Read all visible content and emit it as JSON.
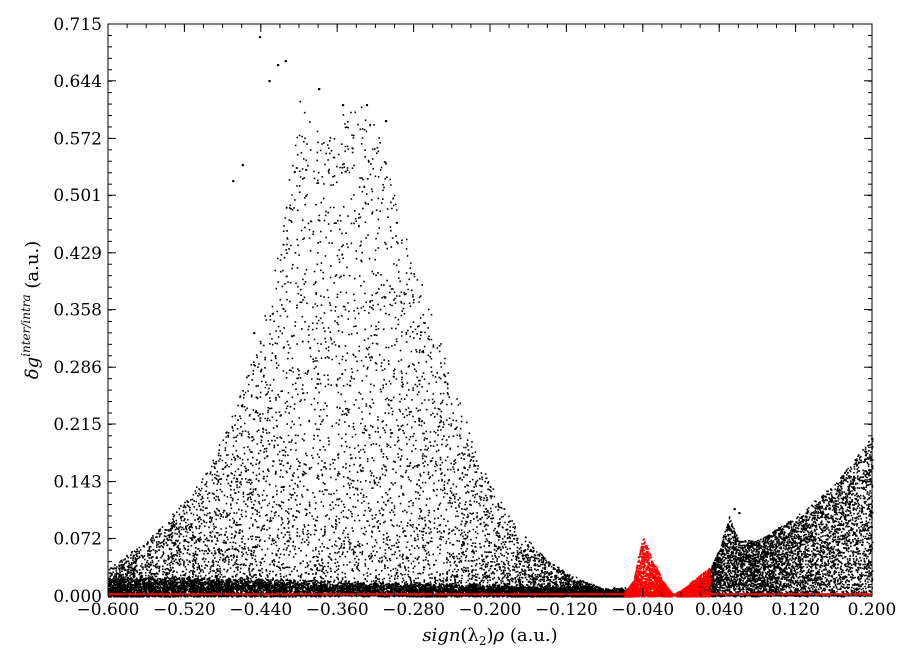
{
  "chart_data": {
    "type": "scatter",
    "title": "",
    "xlabel": "sign(λ₂)ρ (a.u.)",
    "xlabel_parts": {
      "func": "sign",
      "open": "(λ",
      "sub": "2",
      "close": ")",
      "rho": "ρ",
      "units": " (a.u.)"
    },
    "ylabel": "δg^inter/intra (a.u.)",
    "ylabel_parts": {
      "delta": "δg",
      "sup": "inter/intra",
      "units": " (a.u.)"
    },
    "xlim": [
      -0.6,
      0.2
    ],
    "ylim": [
      0,
      0.715
    ],
    "x_ticks": [
      -0.6,
      -0.52,
      -0.44,
      -0.36,
      -0.28,
      -0.2,
      -0.12,
      -0.04,
      0.04,
      0.12,
      0.2
    ],
    "x_tick_labels": [
      "−0.600",
      "−0.520",
      "−0.440",
      "−0.360",
      "−0.280",
      "−0.200",
      "−0.120",
      "−0.040",
      "0.040",
      "0.120",
      "0.200"
    ],
    "y_ticks": [
      0,
      0.072,
      0.143,
      0.215,
      0.286,
      0.358,
      0.429,
      0.501,
      0.572,
      0.644,
      0.715
    ],
    "y_tick_labels": [
      "0.000",
      "0.072",
      "0.143",
      "0.215",
      "0.286",
      "0.358",
      "0.429",
      "0.501",
      "0.572",
      "0.644",
      "0.715"
    ],
    "grid": false,
    "legend": "none",
    "series": [
      {
        "color": "#000000",
        "envelope": {
          "x": [
            -0.6,
            -0.56,
            -0.52,
            -0.5,
            -0.48,
            -0.46,
            -0.44,
            -0.42,
            -0.4,
            -0.38,
            -0.36,
            -0.34,
            -0.32,
            -0.3,
            -0.28,
            -0.26,
            -0.24,
            -0.22,
            -0.2,
            -0.18,
            -0.16,
            -0.14,
            -0.12,
            -0.1,
            -0.08,
            -0.06,
            -0.05
          ],
          "y": [
            0.035,
            0.07,
            0.12,
            0.15,
            0.2,
            0.26,
            0.33,
            0.44,
            0.62,
            0.58,
            0.6,
            0.62,
            0.59,
            0.5,
            0.42,
            0.35,
            0.27,
            0.2,
            0.14,
            0.1,
            0.07,
            0.045,
            0.03,
            0.018,
            0.01,
            0.004,
            0.002
          ]
        },
        "right_band": {
          "x": [
            0.01,
            0.02,
            0.03,
            0.04,
            0.05,
            0.06,
            0.08,
            0.1,
            0.12,
            0.14,
            0.16,
            0.18,
            0.2
          ],
          "y": [
            0.01,
            0.02,
            0.035,
            0.06,
            0.1,
            0.07,
            0.07,
            0.085,
            0.1,
            0.12,
            0.14,
            0.17,
            0.2
          ]
        },
        "highlights": [
          {
            "x": -0.442,
            "y": 0.7
          },
          {
            "x": -0.423,
            "y": 0.665
          },
          {
            "x": -0.415,
            "y": 0.67
          },
          {
            "x": -0.432,
            "y": 0.645
          },
          {
            "x": -0.38,
            "y": 0.635
          },
          {
            "x": -0.355,
            "y": 0.615
          },
          {
            "x": -0.33,
            "y": 0.615
          },
          {
            "x": -0.31,
            "y": 0.595
          },
          {
            "x": -0.47,
            "y": 0.52
          },
          {
            "x": -0.46,
            "y": 0.54
          },
          {
            "x": -0.448,
            "y": 0.33
          },
          {
            "x": -0.45,
            "y": 0.2
          },
          {
            "x": 0.055,
            "y": 0.11
          },
          {
            "x": 0.06,
            "y": 0.105
          }
        ]
      },
      {
        "color": "#ff0000",
        "envelope": {
          "x": [
            -0.06,
            -0.05,
            -0.045,
            -0.04,
            -0.035,
            -0.03,
            -0.025,
            -0.02,
            -0.015,
            -0.01
          ],
          "y": [
            0.005,
            0.02,
            0.05,
            0.075,
            0.06,
            0.045,
            0.035,
            0.02,
            0.012,
            0.004
          ]
        },
        "right_band": {
          "x": [
            -0.005,
            0.0,
            0.005,
            0.01,
            0.015,
            0.02,
            0.025,
            0.03
          ],
          "y": [
            0.005,
            0.008,
            0.012,
            0.018,
            0.022,
            0.028,
            0.032,
            0.036
          ]
        },
        "baseline": {
          "x": [
            -0.6,
            0.2
          ],
          "y": [
            0.001,
            0.001
          ]
        }
      }
    ]
  }
}
